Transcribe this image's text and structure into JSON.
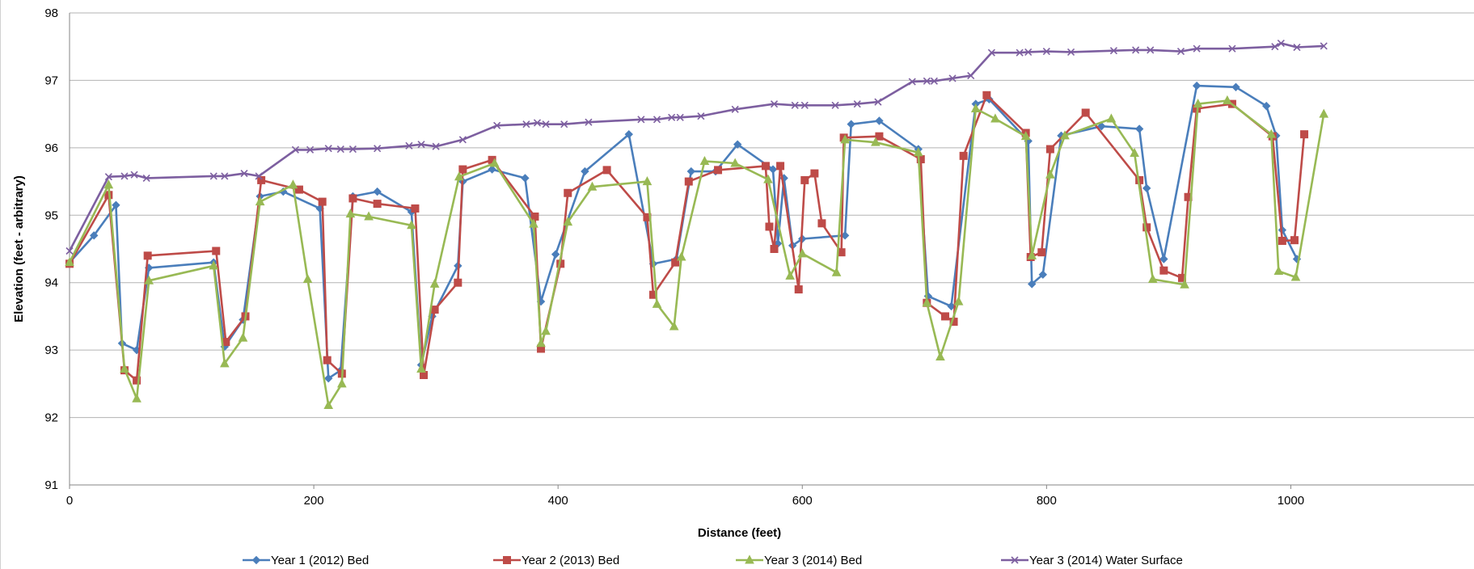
{
  "chart_data": {
    "type": "line",
    "xlabel": "Distance (feet)",
    "ylabel": "Elevation (feet - arbitrary)",
    "xlim": [
      0,
      1150
    ],
    "ylim": [
      91,
      98
    ],
    "xticks": [
      0,
      200,
      400,
      600,
      800,
      1000
    ],
    "yticks": [
      91,
      92,
      93,
      94,
      95,
      96,
      97,
      98
    ],
    "grid": "horizontal",
    "legend_position": "bottom",
    "series": [
      {
        "name": "Year 1 (2012) Bed",
        "color": "#4a7ebb",
        "marker": "diamond",
        "points": [
          [
            0,
            94.3
          ],
          [
            20,
            94.7
          ],
          [
            38,
            95.15
          ],
          [
            43,
            93.1
          ],
          [
            55,
            93.0
          ],
          [
            65,
            94.22
          ],
          [
            118,
            94.3
          ],
          [
            127,
            93.05
          ],
          [
            142,
            93.45
          ],
          [
            156,
            95.28
          ],
          [
            175,
            95.35
          ],
          [
            205,
            95.1
          ],
          [
            212,
            92.58
          ],
          [
            222,
            92.7
          ],
          [
            232,
            95.28
          ],
          [
            252,
            95.35
          ],
          [
            280,
            95.05
          ],
          [
            288,
            92.78
          ],
          [
            297,
            93.5
          ],
          [
            318,
            94.25
          ],
          [
            322,
            95.5
          ],
          [
            346,
            95.68
          ],
          [
            373,
            95.55
          ],
          [
            386,
            93.72
          ],
          [
            398,
            94.42
          ],
          [
            422,
            95.65
          ],
          [
            458,
            96.2
          ],
          [
            478,
            94.28
          ],
          [
            497,
            94.35
          ],
          [
            509,
            95.65
          ],
          [
            529,
            95.65
          ],
          [
            547,
            96.05
          ],
          [
            576,
            95.68
          ],
          [
            580,
            94.58
          ],
          [
            585,
            95.55
          ],
          [
            592,
            94.55
          ],
          [
            600,
            94.65
          ],
          [
            635,
            94.7
          ],
          [
            640,
            96.35
          ],
          [
            663,
            96.4
          ],
          [
            695,
            95.98
          ],
          [
            703,
            93.8
          ],
          [
            722,
            93.65
          ],
          [
            742,
            96.65
          ],
          [
            753,
            96.72
          ],
          [
            785,
            96.1
          ],
          [
            788,
            93.98
          ],
          [
            797,
            94.12
          ],
          [
            812,
            96.18
          ],
          [
            845,
            96.32
          ],
          [
            876,
            96.28
          ],
          [
            882,
            95.4
          ],
          [
            896,
            94.35
          ],
          [
            923,
            96.92
          ],
          [
            955,
            96.9
          ],
          [
            980,
            96.62
          ],
          [
            988,
            96.18
          ],
          [
            993,
            94.78
          ],
          [
            1005,
            94.35
          ]
        ]
      },
      {
        "name": "Year 2 (2013) Bed",
        "color": "#be4b48",
        "marker": "square",
        "points": [
          [
            0,
            94.28
          ],
          [
            32,
            95.3
          ],
          [
            45,
            92.7
          ],
          [
            55,
            92.55
          ],
          [
            64,
            94.4
          ],
          [
            120,
            94.47
          ],
          [
            128,
            93.12
          ],
          [
            144,
            93.5
          ],
          [
            157,
            95.52
          ],
          [
            188,
            95.38
          ],
          [
            207,
            95.2
          ],
          [
            211,
            92.85
          ],
          [
            223,
            92.65
          ],
          [
            232,
            95.25
          ],
          [
            252,
            95.17
          ],
          [
            283,
            95.1
          ],
          [
            290,
            92.63
          ],
          [
            299,
            93.6
          ],
          [
            318,
            94.0
          ],
          [
            322,
            95.68
          ],
          [
            346,
            95.82
          ],
          [
            381,
            94.98
          ],
          [
            386,
            93.02
          ],
          [
            402,
            94.28
          ],
          [
            408,
            95.33
          ],
          [
            440,
            95.67
          ],
          [
            473,
            94.97
          ],
          [
            478,
            93.82
          ],
          [
            496,
            94.3
          ],
          [
            507,
            95.5
          ],
          [
            531,
            95.67
          ],
          [
            570,
            95.73
          ],
          [
            573,
            94.83
          ],
          [
            577,
            94.5
          ],
          [
            582,
            95.73
          ],
          [
            597,
            93.9
          ],
          [
            602,
            95.52
          ],
          [
            610,
            95.62
          ],
          [
            616,
            94.88
          ],
          [
            632,
            94.45
          ],
          [
            634,
            96.15
          ],
          [
            663,
            96.17
          ],
          [
            697,
            95.83
          ],
          [
            702,
            93.7
          ],
          [
            717,
            93.5
          ],
          [
            724,
            93.42
          ],
          [
            732,
            95.88
          ],
          [
            751,
            96.78
          ],
          [
            783,
            96.22
          ],
          [
            787,
            94.38
          ],
          [
            796,
            94.45
          ],
          [
            803,
            95.98
          ],
          [
            832,
            96.52
          ],
          [
            876,
            95.52
          ],
          [
            882,
            94.82
          ],
          [
            896,
            94.18
          ],
          [
            911,
            94.07
          ],
          [
            916,
            95.27
          ],
          [
            923,
            96.58
          ],
          [
            952,
            96.65
          ],
          [
            985,
            96.17
          ],
          [
            993,
            94.62
          ],
          [
            1003,
            94.63
          ],
          [
            1011,
            96.2
          ]
        ]
      },
      {
        "name": "Year 3 (2014) Bed",
        "color": "#98b954",
        "marker": "triangle",
        "points": [
          [
            0,
            94.3
          ],
          [
            32,
            95.45
          ],
          [
            45,
            92.72
          ],
          [
            55,
            92.28
          ],
          [
            65,
            94.03
          ],
          [
            118,
            94.25
          ],
          [
            127,
            92.8
          ],
          [
            142,
            93.18
          ],
          [
            156,
            95.2
          ],
          [
            183,
            95.45
          ],
          [
            195,
            94.05
          ],
          [
            212,
            92.18
          ],
          [
            223,
            92.5
          ],
          [
            230,
            95.02
          ],
          [
            245,
            94.98
          ],
          [
            280,
            94.85
          ],
          [
            288,
            92.72
          ],
          [
            299,
            93.98
          ],
          [
            319,
            95.57
          ],
          [
            348,
            95.77
          ],
          [
            380,
            94.87
          ],
          [
            386,
            93.1
          ],
          [
            390,
            93.28
          ],
          [
            408,
            94.9
          ],
          [
            428,
            95.42
          ],
          [
            473,
            95.5
          ],
          [
            481,
            93.68
          ],
          [
            495,
            93.35
          ],
          [
            501,
            94.38
          ],
          [
            520,
            95.8
          ],
          [
            545,
            95.77
          ],
          [
            572,
            95.53
          ],
          [
            590,
            94.1
          ],
          [
            600,
            94.43
          ],
          [
            628,
            94.15
          ],
          [
            635,
            96.12
          ],
          [
            660,
            96.08
          ],
          [
            695,
            95.93
          ],
          [
            702,
            93.7
          ],
          [
            713,
            92.9
          ],
          [
            728,
            93.72
          ],
          [
            742,
            96.58
          ],
          [
            758,
            96.43
          ],
          [
            783,
            96.17
          ],
          [
            788,
            94.4
          ],
          [
            803,
            95.6
          ],
          [
            815,
            96.18
          ],
          [
            853,
            96.43
          ],
          [
            872,
            95.92
          ],
          [
            887,
            94.05
          ],
          [
            913,
            93.97
          ],
          [
            924,
            96.65
          ],
          [
            948,
            96.7
          ],
          [
            984,
            96.2
          ],
          [
            990,
            94.17
          ],
          [
            1004,
            94.08
          ],
          [
            1027,
            96.5
          ]
        ]
      },
      {
        "name": "Year 3 (2014) Water Surface",
        "color": "#7d5fa0",
        "marker": "x",
        "points": [
          [
            0,
            94.47
          ],
          [
            32,
            95.57
          ],
          [
            45,
            95.58
          ],
          [
            53,
            95.6
          ],
          [
            63,
            95.55
          ],
          [
            118,
            95.58
          ],
          [
            127,
            95.58
          ],
          [
            143,
            95.62
          ],
          [
            155,
            95.58
          ],
          [
            185,
            95.97
          ],
          [
            197,
            95.97
          ],
          [
            212,
            95.99
          ],
          [
            222,
            95.98
          ],
          [
            232,
            95.98
          ],
          [
            252,
            95.99
          ],
          [
            278,
            96.03
          ],
          [
            288,
            96.05
          ],
          [
            300,
            96.02
          ],
          [
            322,
            96.12
          ],
          [
            350,
            96.33
          ],
          [
            374,
            96.35
          ],
          [
            383,
            96.37
          ],
          [
            390,
            96.35
          ],
          [
            405,
            96.35
          ],
          [
            425,
            96.38
          ],
          [
            468,
            96.42
          ],
          [
            481,
            96.42
          ],
          [
            493,
            96.45
          ],
          [
            500,
            96.45
          ],
          [
            517,
            96.47
          ],
          [
            545,
            96.57
          ],
          [
            577,
            96.65
          ],
          [
            594,
            96.63
          ],
          [
            602,
            96.63
          ],
          [
            627,
            96.63
          ],
          [
            645,
            96.65
          ],
          [
            662,
            96.68
          ],
          [
            690,
            96.98
          ],
          [
            702,
            96.99
          ],
          [
            708,
            96.99
          ],
          [
            723,
            97.03
          ],
          [
            738,
            97.07
          ],
          [
            755,
            97.41
          ],
          [
            778,
            97.41
          ],
          [
            785,
            97.42
          ],
          [
            800,
            97.43
          ],
          [
            820,
            97.42
          ],
          [
            855,
            97.44
          ],
          [
            873,
            97.45
          ],
          [
            885,
            97.45
          ],
          [
            910,
            97.43
          ],
          [
            923,
            97.47
          ],
          [
            952,
            97.47
          ],
          [
            987,
            97.5
          ],
          [
            992,
            97.55
          ],
          [
            1005,
            97.49
          ],
          [
            1027,
            97.51
          ]
        ]
      }
    ]
  }
}
